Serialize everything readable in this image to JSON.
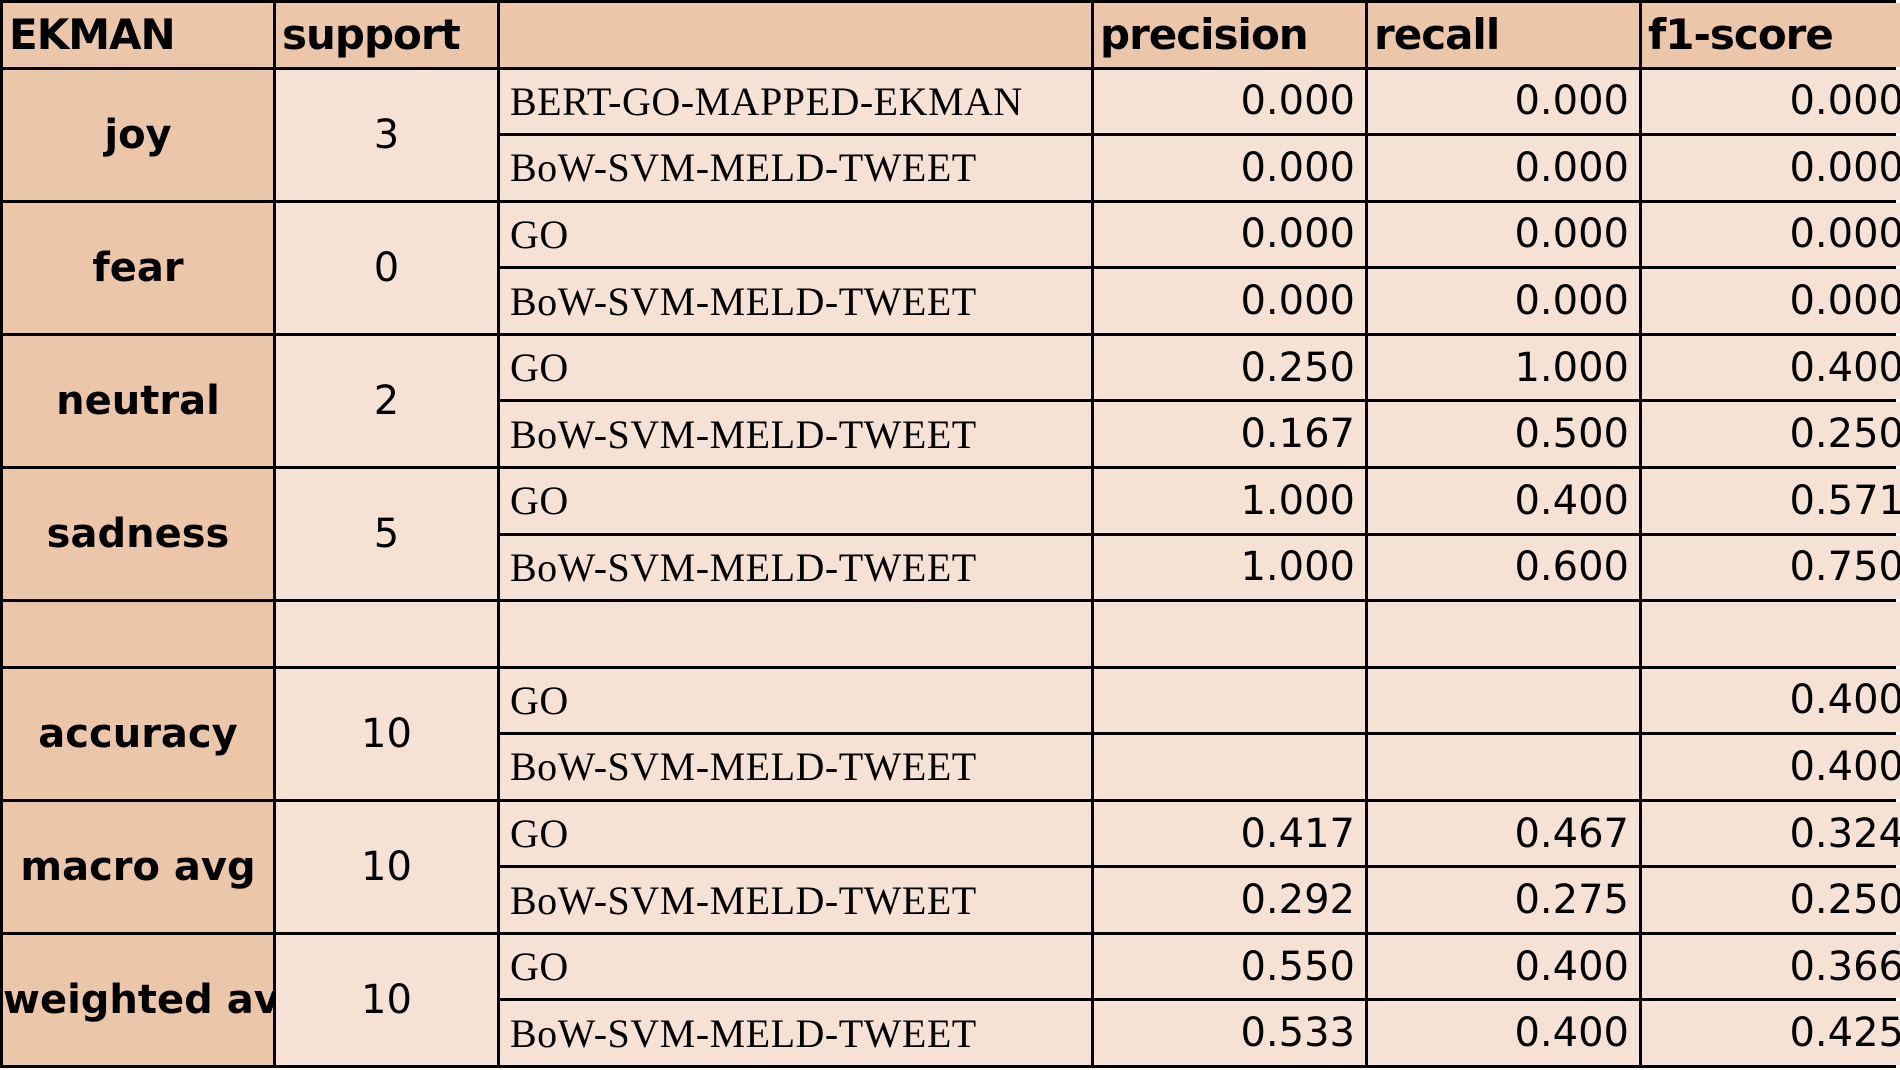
{
  "header": {
    "col_label": "EKMAN",
    "col_support": "support",
    "col_model": "",
    "col_precision": "precision",
    "col_recall": "recall",
    "col_f1": "f1-score"
  },
  "groups": [
    {
      "label": "joy",
      "support": "3",
      "rows": [
        {
          "model": "BERT-GO-MAPPED-EKMAN",
          "precision": "0.000",
          "recall": "0.000",
          "f1": "0.000"
        },
        {
          "model": "BoW-SVM-MELD-TWEET",
          "precision": "0.000",
          "recall": "0.000",
          "f1": "0.000"
        }
      ]
    },
    {
      "label": "fear",
      "support": "0",
      "rows": [
        {
          "model": "GO",
          "precision": "0.000",
          "recall": "0.000",
          "f1": "0.000"
        },
        {
          "model": "BoW-SVM-MELD-TWEET",
          "precision": "0.000",
          "recall": "0.000",
          "f1": "0.000"
        }
      ]
    },
    {
      "label": "neutral",
      "support": "2",
      "rows": [
        {
          "model": "GO",
          "precision": "0.250",
          "recall": "1.000",
          "f1": "0.400"
        },
        {
          "model": "BoW-SVM-MELD-TWEET",
          "precision": "0.167",
          "recall": "0.500",
          "f1": "0.250"
        }
      ]
    },
    {
      "label": "sadness",
      "support": "5",
      "rows": [
        {
          "model": "GO",
          "precision": "1.000",
          "recall": "0.400",
          "f1": "0.571"
        },
        {
          "model": "BoW-SVM-MELD-TWEET",
          "precision": "1.000",
          "recall": "0.600",
          "f1": "0.750"
        }
      ]
    },
    {
      "label": "accuracy",
      "support": "10",
      "rows": [
        {
          "model": "GO",
          "precision": "",
          "recall": "",
          "f1": "0.400"
        },
        {
          "model": "BoW-SVM-MELD-TWEET",
          "precision": "",
          "recall": "",
          "f1": "0.400"
        }
      ]
    },
    {
      "label": "macro avg",
      "support": "10",
      "rows": [
        {
          "model": "GO",
          "precision": "0.417",
          "recall": "0.467",
          "f1": "0.324"
        },
        {
          "model": "BoW-SVM-MELD-TWEET",
          "precision": "0.292",
          "recall": "0.275",
          "f1": "0.250"
        }
      ]
    },
    {
      "label": "weighted avg",
      "support": "10",
      "rows": [
        {
          "model": "GO",
          "precision": "0.550",
          "recall": "0.400",
          "f1": "0.366"
        },
        {
          "model": "BoW-SVM-MELD-TWEET",
          "precision": "0.533",
          "recall": "0.400",
          "f1": "0.425"
        }
      ]
    }
  ],
  "colors": {
    "header_bg": "#ebc6a8",
    "body_bg": "#f6e2d5",
    "grid_line": "#000000"
  }
}
